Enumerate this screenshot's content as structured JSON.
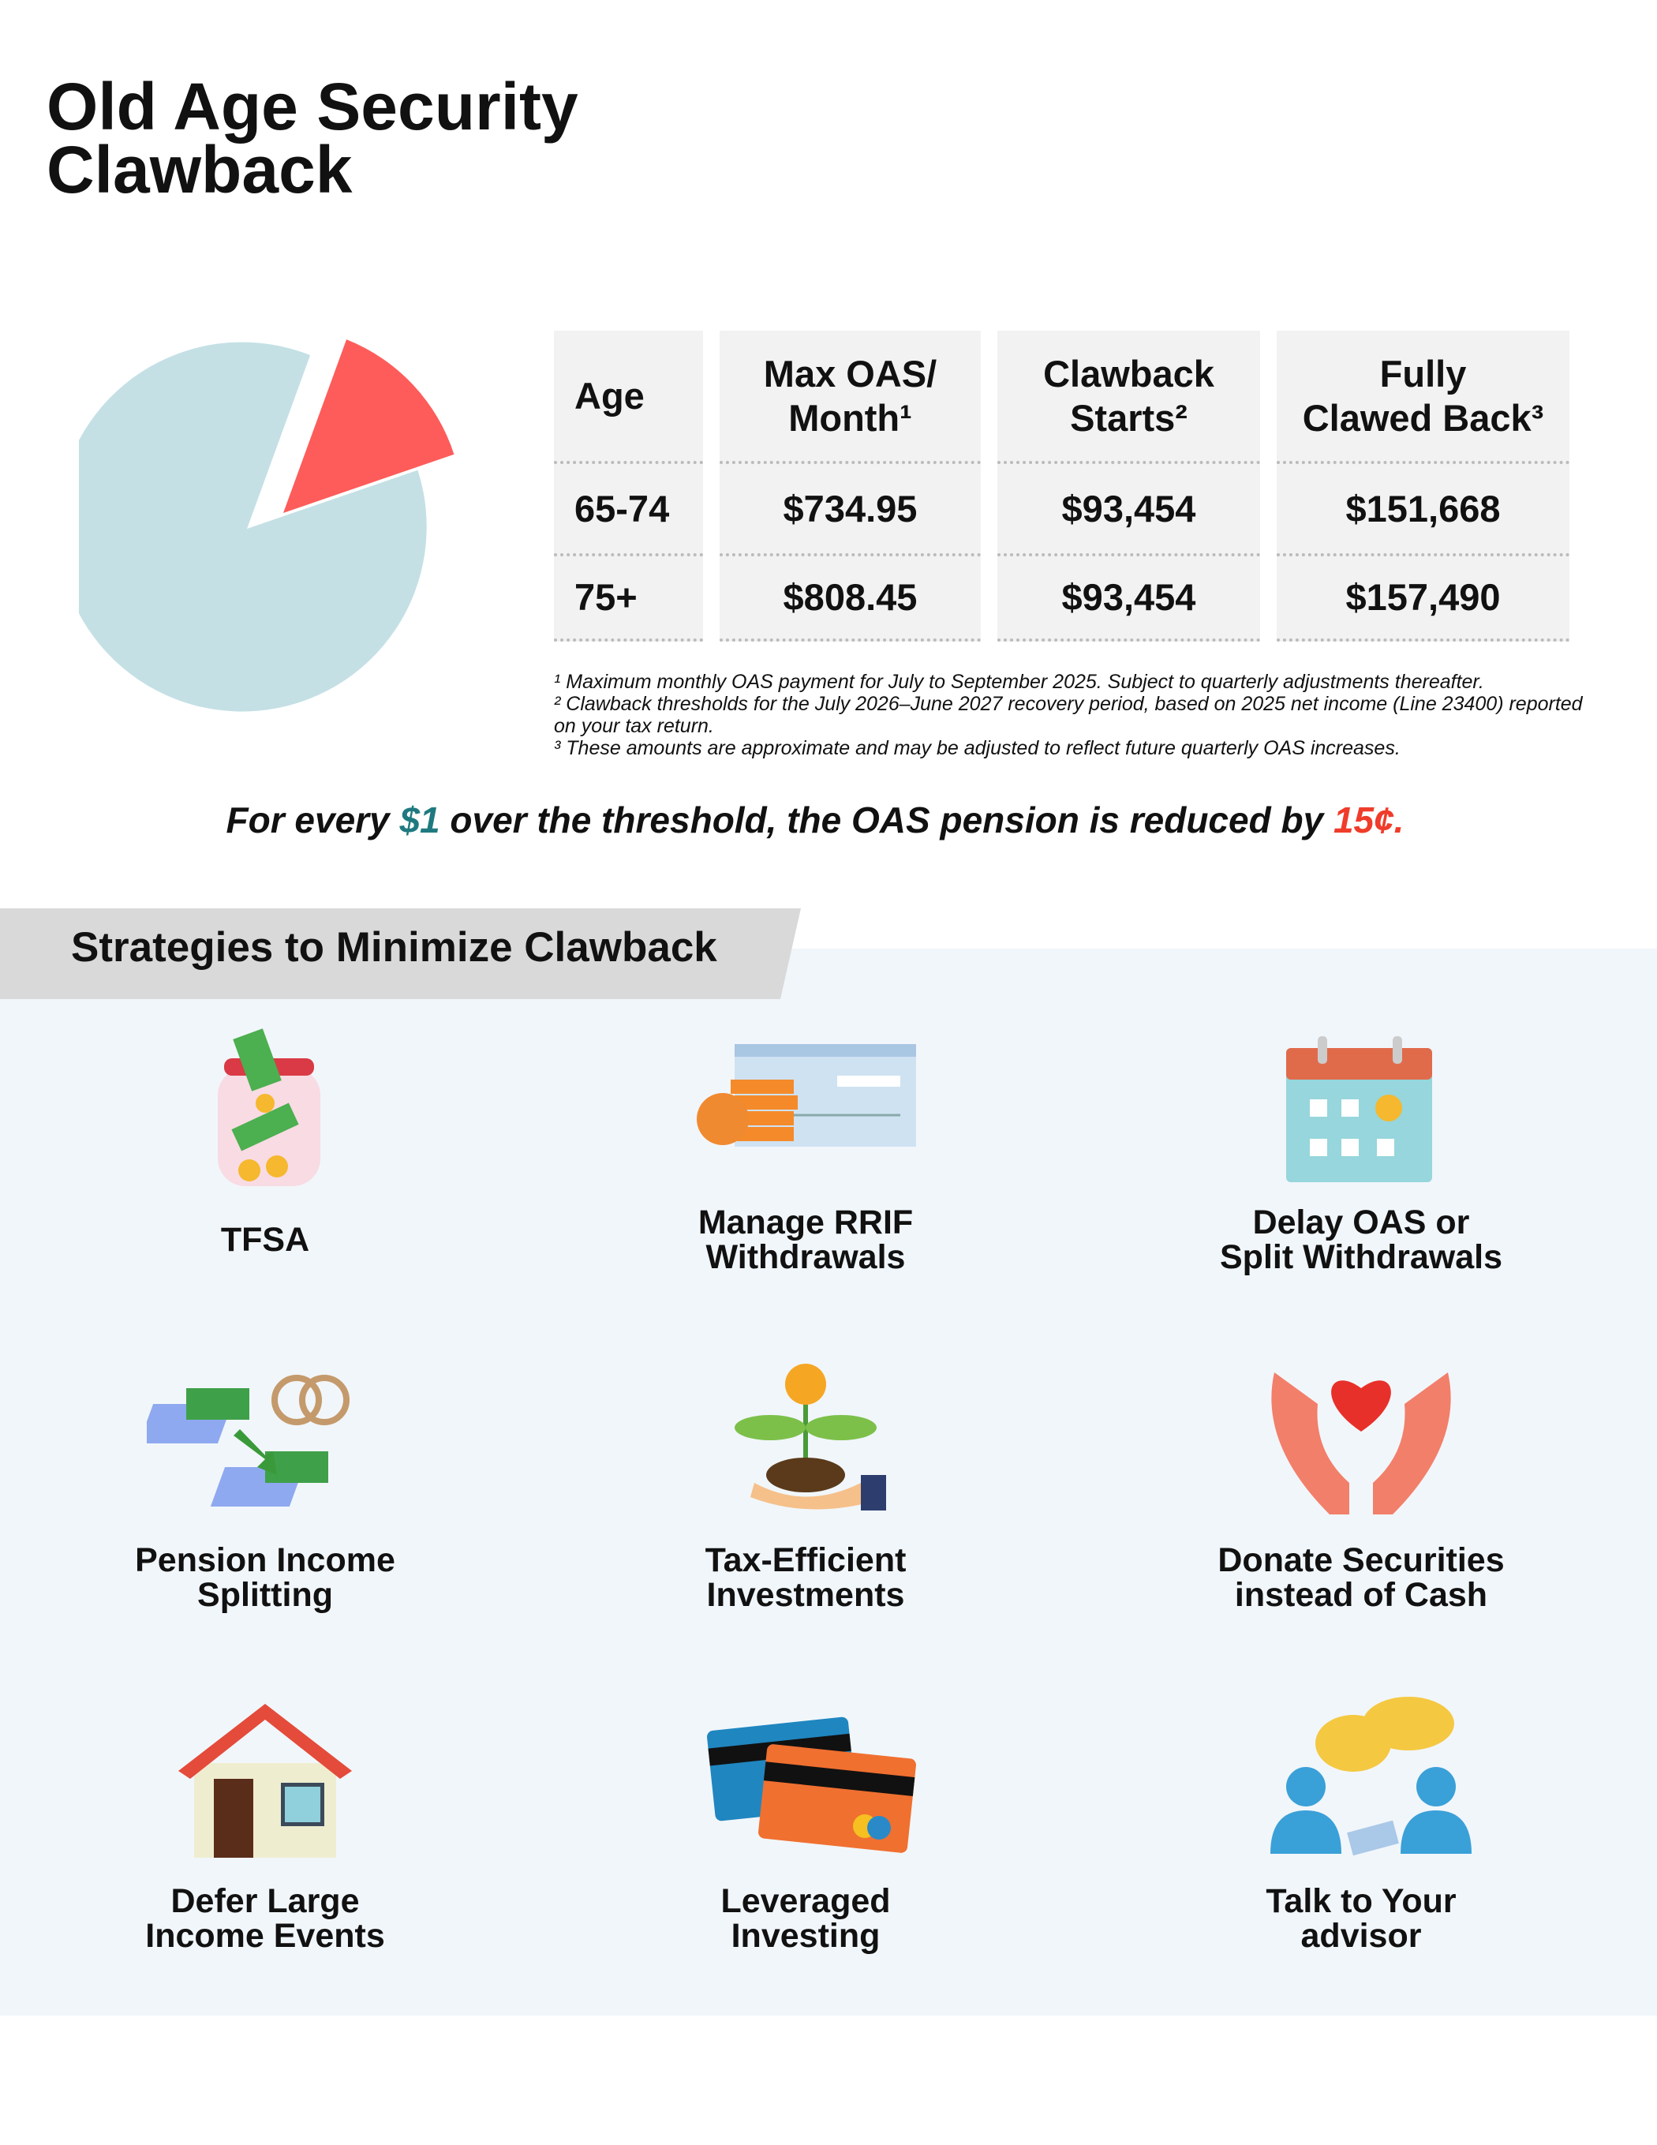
{
  "header": {
    "title_lines": [
      "Old Age Security",
      "Clawback"
    ]
  },
  "table": {
    "columns": [
      [
        "Age"
      ],
      [
        "Max OAS/",
        "Month¹"
      ],
      [
        "Clawback",
        "Starts²"
      ],
      [
        "Fully",
        "Clawed Back³"
      ]
    ],
    "rows": [
      [
        "65-74",
        "$734.95",
        "$93,454",
        "$151,668"
      ],
      [
        "75+",
        "$808.45",
        "$93,454",
        "$157,490"
      ]
    ]
  },
  "footnotes": [
    "¹ Maximum monthly OAS payment for July to September 2025. Subject to quarterly adjustments thereafter.",
    "² Clawback thresholds for the July 2026–June 2027 recovery period, based on 2025 net income (Line 23400) reported on your tax return.",
    "³ These amounts are approximate and may be adjusted to reflect future quarterly OAS increases."
  ],
  "tagline": [
    "For every ",
    "$1",
    " over the threshold, the OAS pension is reduced by ",
    "15¢."
  ],
  "strategies": {
    "title": "Strategies to Minimize Clawback",
    "items": [
      [
        "TFSA"
      ],
      [
        "Manage RRIF",
        "Withdrawals"
      ],
      [
        "Delay OAS or",
        "Split Withdrawals"
      ],
      [
        "Pension Income",
        "Splitting"
      ],
      [
        "Tax-Efficient",
        "Investments"
      ],
      [
        "Donate Securities",
        "instead of Cash"
      ],
      [
        "Defer Large",
        "Income Events"
      ],
      [
        "Leveraged",
        "Investing"
      ],
      [
        "Talk to Your",
        "advisor"
      ]
    ]
  }
}
